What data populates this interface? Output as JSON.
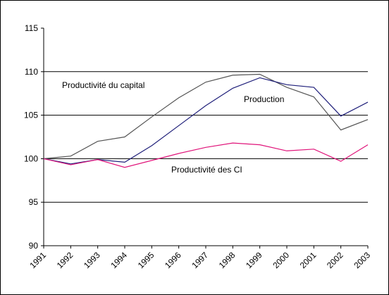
{
  "chart_data": {
    "type": "line",
    "categories": [
      "1991",
      "1992",
      "1993",
      "1994",
      "1995",
      "1996",
      "1997",
      "1998",
      "1999",
      "2000",
      "2001",
      "2002",
      "2003"
    ],
    "series": [
      {
        "name": "Productivité du capital",
        "color": "#555555",
        "values": [
          100,
          100.3,
          102.0,
          102.5,
          104.8,
          107.0,
          108.8,
          109.6,
          109.7,
          108.2,
          107.1,
          103.3,
          104.5
        ]
      },
      {
        "name": "Production",
        "color": "#1f1f7a",
        "values": [
          100,
          99.4,
          99.9,
          99.6,
          101.5,
          103.8,
          106.1,
          108.1,
          109.3,
          108.5,
          108.2,
          104.9,
          106.5
        ]
      },
      {
        "name": "Productivité des CI",
        "color": "#e0147a",
        "values": [
          100,
          99.3,
          99.9,
          99.0,
          99.8,
          100.6,
          101.3,
          101.8,
          101.6,
          100.9,
          101.1,
          99.7,
          101.6
        ]
      }
    ],
    "ylim": [
      90,
      115
    ],
    "yticks": [
      90,
      95,
      100,
      105,
      110,
      115
    ],
    "grid": true
  }
}
